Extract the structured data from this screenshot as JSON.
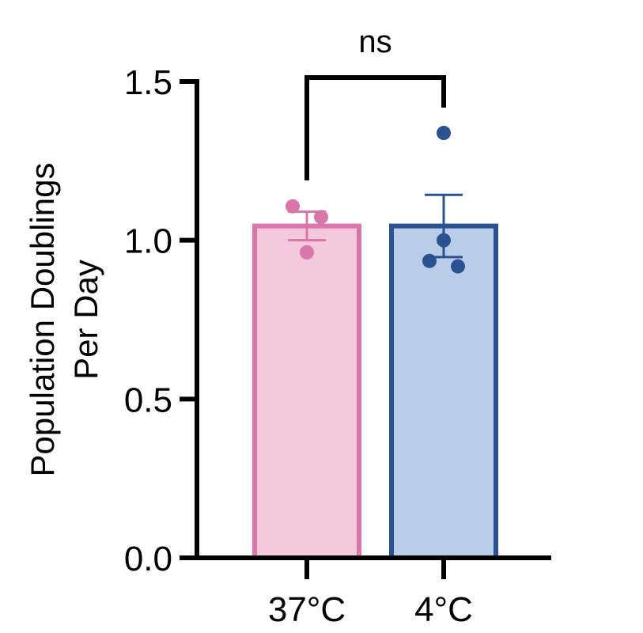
{
  "chart_data": {
    "type": "bar",
    "ylabel_lines": [
      "Population Doublings",
      "Per Day"
    ],
    "ylim": [
      0,
      1.5
    ],
    "yticks": [
      0.0,
      0.5,
      1.0,
      1.5
    ],
    "ytick_labels": [
      "0.0",
      "0.5",
      "1.0",
      "1.5"
    ],
    "categories": [
      "37°C",
      "4°C"
    ],
    "bars": [
      {
        "category": "37°C",
        "mean": 1.045,
        "error": 0.045,
        "points": [
          1.107,
          1.073,
          0.962
        ],
        "fill": "#f5c9dc",
        "stroke": "#d877a8"
      },
      {
        "category": "4°C",
        "mean": 1.045,
        "error": 0.098,
        "points": [
          1.338,
          1.0,
          0.935,
          0.918
        ],
        "fill": "#b9cce8",
        "stroke": "#2b5290"
      }
    ],
    "significance": {
      "label": "ns",
      "between": [
        "37°C",
        "4°C"
      ]
    },
    "grid": false,
    "legend": "none"
  }
}
